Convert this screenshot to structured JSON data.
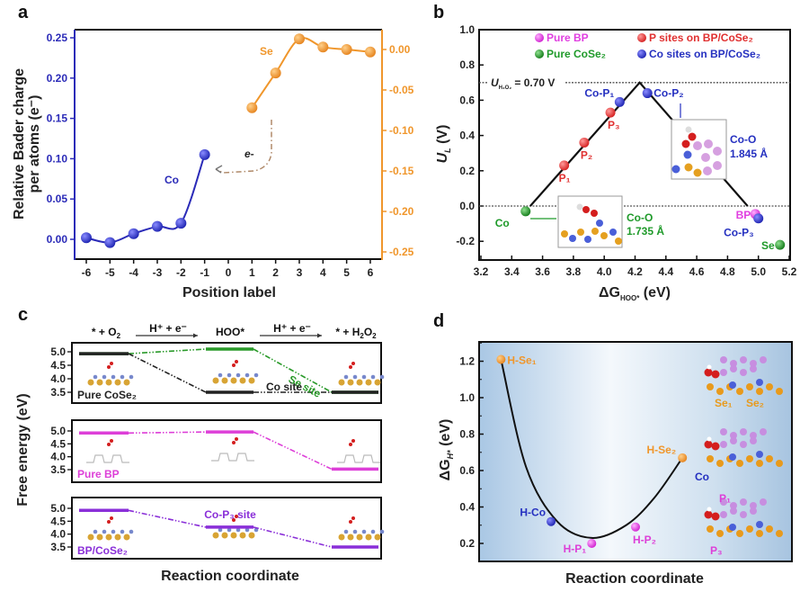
{
  "chart_data": [
    {
      "panel": "a",
      "type": "line",
      "panel_label": "a",
      "xlabel": "Position label",
      "ylabel_left": "Relative Bader charge per atoms (e⁻)",
      "ylabel_left_line1": "Relative Bader charge",
      "ylabel_left_line2": "per atoms (e⁻)",
      "xlim": [
        -6.5,
        6.5
      ],
      "xticks": [
        -6,
        -5,
        -4,
        -3,
        -2,
        -1,
        0,
        1,
        2,
        3,
        4,
        5,
        6
      ],
      "ylim_left": [
        -0.025,
        0.26
      ],
      "yticks_left": [
        0.0,
        0.05,
        0.1,
        0.15,
        0.2,
        0.25
      ],
      "ylim_right": [
        -0.265,
        0.017
      ],
      "yticks_right": [
        0.0,
        -0.05,
        -0.1,
        -0.15,
        -0.2,
        -0.25
      ],
      "grid": false,
      "series": [
        {
          "name": "Co",
          "axis": "left",
          "color": "#2b2bb8",
          "x": [
            -6,
            -5,
            -4,
            -3,
            -2,
            -1
          ],
          "y": [
            0.002,
            -0.004,
            0.007,
            0.016,
            0.02,
            0.105
          ]
        },
        {
          "name": "Se",
          "axis": "right",
          "color": "#f0962b",
          "x": [
            1,
            2,
            3,
            4,
            5,
            6
          ],
          "y": [
            -0.072,
            -0.029,
            0.013,
            0.003,
            0.0,
            -0.003
          ]
        }
      ],
      "annotations": {
        "electron": "e-",
        "co_label": "Co",
        "se_label": "Se"
      }
    },
    {
      "panel": "b",
      "type": "scatter",
      "panel_label": "b",
      "xlabel": "ΔG",
      "xlabel_sub": "HOO*",
      "xlabel_unit": " (eV)",
      "ylabel": "U",
      "ylabel_sub": "L",
      "ylabel_unit": " (V)",
      "xlim": [
        3.2,
        5.2
      ],
      "xticks": [
        3.2,
        3.4,
        3.6,
        3.8,
        4.0,
        4.2,
        4.4,
        4.6,
        4.8,
        5.0,
        5.2
      ],
      "ylim": [
        -0.3,
        1.0
      ],
      "yticks": [
        -0.2,
        0.0,
        0.2,
        0.4,
        0.6,
        0.8,
        1.0
      ],
      "grid": false,
      "legend_position": "top",
      "legend": [
        {
          "label": "Pure BP",
          "color": "#e040e0"
        },
        {
          "label": "P sites on BP/CoSe₂",
          "color": "#e03030"
        },
        {
          "label": "Pure CoSe₂",
          "color": "#1f9a2a"
        },
        {
          "label": "Co sites on BP/CoSe₂",
          "color": "#2530c0"
        }
      ],
      "volcano_line": {
        "x": [
          3.52,
          4.23,
          4.93
        ],
        "y": [
          0.0,
          0.7,
          0.0
        ]
      },
      "reference_lines": [
        {
          "y": 0.7,
          "label": "U",
          "label_sub": "H₂O₂",
          "label_rest": " = 0.70 V"
        },
        {
          "y": 0.0
        }
      ],
      "points": [
        {
          "label": "P₁",
          "series": "P sites on BP/CoSe₂",
          "x": 3.74,
          "y": 0.23
        },
        {
          "label": "P₂",
          "series": "P sites on BP/CoSe₂",
          "x": 3.87,
          "y": 0.36
        },
        {
          "label": "P₃",
          "series": "P sites on BP/CoSe₂",
          "x": 4.04,
          "y": 0.53
        },
        {
          "label": "Co-P₁",
          "series": "Co sites on BP/CoSe₂",
          "x": 4.1,
          "y": 0.59
        },
        {
          "label": "Co-P₂",
          "series": "Co sites on BP/CoSe₂",
          "x": 4.28,
          "y": 0.64
        },
        {
          "label": "Co",
          "series": "Pure CoSe₂",
          "x": 3.49,
          "y": -0.03
        },
        {
          "label": "BP",
          "series": "Pure BP",
          "x": 4.98,
          "y": -0.045
        },
        {
          "label": "Co-P₃",
          "series": "Co sites on BP/CoSe₂",
          "x": 5.0,
          "y": -0.07
        },
        {
          "label": "Se",
          "series": "Pure CoSe₂",
          "x": 5.14,
          "y": -0.22
        }
      ],
      "insets": [
        {
          "label_line1": "Co-O",
          "label_line2": "1.735 Å",
          "color": "#1f9a2a"
        },
        {
          "label_line1": "Co-O",
          "label_line2": "1.845 Å",
          "color": "#2530c0"
        }
      ]
    },
    {
      "panel": "c",
      "type": "line",
      "panel_label": "c",
      "xlabel": "Reaction coordinate",
      "ylabel": "Free energy (eV)",
      "yticks": [
        3.5,
        4.0,
        4.5,
        5.0
      ],
      "ylim": [
        3.3,
        5.3
      ],
      "states": [
        "* + O₂",
        "HOO*",
        "* + H₂O₂"
      ],
      "state_labels": {
        "s1": "* + O",
        "s1_sub": "2",
        "s2": "HOO*",
        "s3": "* + H",
        "s3_sub1": "2",
        "s3_mid": "O",
        "s3_sub2": "2"
      },
      "step_label": "H⁺ + e⁻",
      "subpanels": [
        {
          "name": "Pure CoSe₂",
          "color": "#222222",
          "series": [
            {
              "name": "Se site",
              "color": "#2a9a2a",
              "values": [
                4.93,
                5.1,
                3.5
              ]
            },
            {
              "name": "Co site",
              "color": "#222222",
              "values": [
                4.93,
                3.5,
                3.5
              ]
            }
          ]
        },
        {
          "name": "Pure BP",
          "color": "#dd3fd8",
          "series": [
            {
              "name": "",
              "color": "#dd3fd8",
              "values": [
                4.92,
                4.96,
                3.52
              ]
            }
          ]
        },
        {
          "name": "BP/CoSe₂",
          "color": "#8a2fd8",
          "series": [
            {
              "name": "Co-P₃ site",
              "color": "#8a2fd8",
              "values": [
                4.92,
                4.27,
                3.5
              ]
            }
          ]
        }
      ]
    },
    {
      "panel": "d",
      "type": "scatter",
      "panel_label": "d",
      "xlabel": "Reaction coordinate",
      "ylabel": "ΔG",
      "ylabel_sub": "H*",
      "ylabel_unit": " (eV)",
      "ylim": [
        0.1,
        1.3
      ],
      "yticks": [
        0.2,
        0.4,
        0.6,
        0.8,
        1.0,
        1.2
      ],
      "grid": false,
      "points": [
        {
          "label": "H-Se₁",
          "color": "#f0962b",
          "x": 0.07,
          "y": 1.21
        },
        {
          "label": "H-Co",
          "color": "#2530c0",
          "x": 0.23,
          "y": 0.32
        },
        {
          "label": "H-P₁",
          "color": "#dd3fd8",
          "x": 0.36,
          "y": 0.2
        },
        {
          "label": "H-P₂",
          "color": "#dd3fd8",
          "x": 0.5,
          "y": 0.29
        },
        {
          "label": "H-Se₂",
          "color": "#f0962b",
          "x": 0.65,
          "y": 0.67
        }
      ],
      "curve": {
        "x": [
          0.07,
          0.15,
          0.25,
          0.36,
          0.47,
          0.56,
          0.65
        ],
        "y": [
          1.21,
          0.62,
          0.32,
          0.23,
          0.3,
          0.45,
          0.67
        ]
      },
      "structure_labels": [
        "Se₁",
        "Se₂",
        "Co",
        "P₁",
        "P₃"
      ]
    }
  ]
}
